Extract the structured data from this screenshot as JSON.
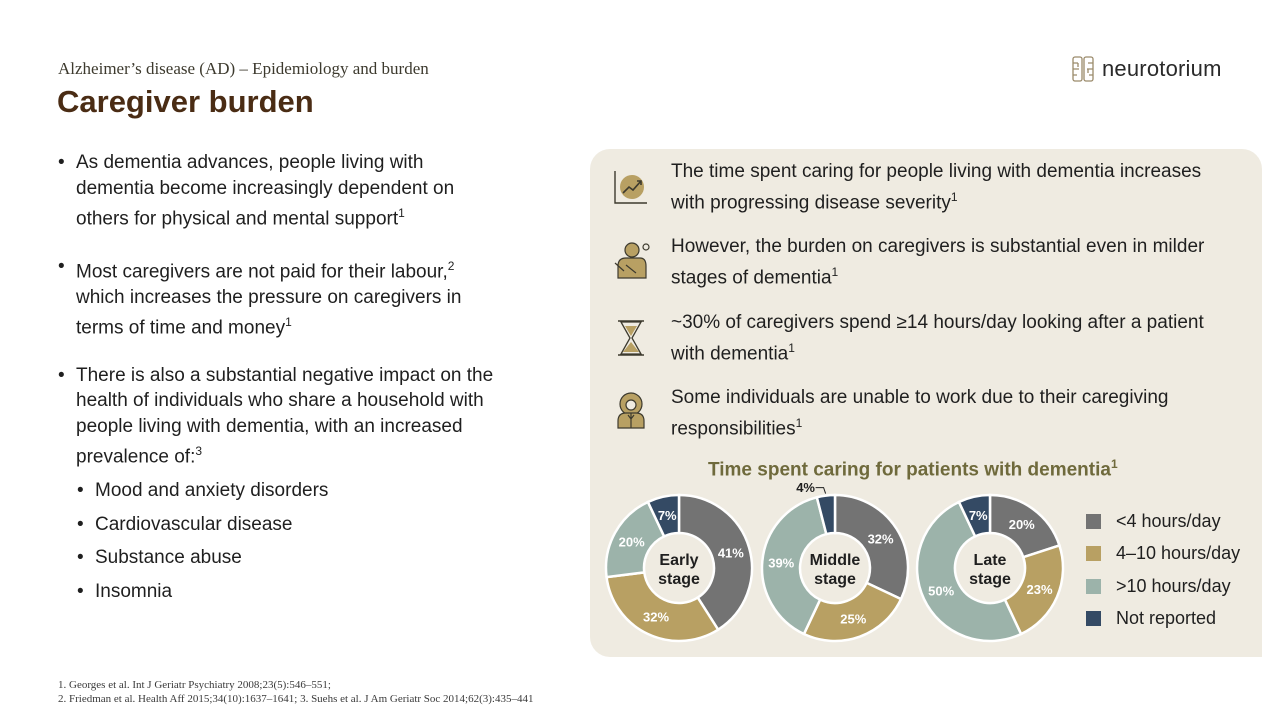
{
  "header": {
    "subtitle": "Alzheimer’s disease (AD) – Epidemiology and burden",
    "title": "Caregiver burden",
    "logo_text": "neurotorium"
  },
  "bullets": [
    {
      "text": "As dementia advances, people living with dementia become increasingly dependent on others for physical and mental support",
      "ref": "1"
    },
    {
      "text": "Most caregivers are not paid for their labour,",
      "ref": "2",
      "text2": " which increases the pressure on caregivers in terms of time and money",
      "ref2": "1"
    },
    {
      "text": "There is also a substantial negative impact on the health of individuals who share a household with people living with dementia, with an increased prevalence of:",
      "ref": "3"
    }
  ],
  "sub_bullets": [
    "Mood and anxiety disorders",
    "Cardiovascular disease",
    "Substance abuse",
    "Insomnia"
  ],
  "panel": {
    "statements": [
      {
        "text": "The time spent caring for people living with dementia increases with progressing disease severity",
        "ref": "1",
        "icon": "chart-trend-icon"
      },
      {
        "text": "However, the burden on caregivers is substantial even in milder stages of dementia",
        "ref": "1",
        "icon": "caregiver-burden-icon"
      },
      {
        "text": "~30% of caregivers spend ≥14 hours/day looking after a patient with dementia",
        "ref": "1",
        "icon": "hourglass-icon"
      },
      {
        "text": "Some individuals are unable to work due to their caregiving responsibilities",
        "ref": "1",
        "icon": "worker-icon"
      }
    ],
    "chart_title": "Time spent caring for patients with dementia",
    "chart_title_ref": "1"
  },
  "chart_data": {
    "type": "pie",
    "title": "Time spent caring for patients with dementia",
    "legend_position": "right",
    "categories": [
      "<4 hours/day",
      "4–10 hours/day",
      ">10 hours/day",
      "Not reported"
    ],
    "colors": [
      "#737373",
      "#b8a063",
      "#9cb3aa",
      "#344a64"
    ],
    "series": [
      {
        "name": "Early stage",
        "label_line1": "Early",
        "label_line2": "stage",
        "values": [
          41,
          32,
          20,
          7
        ]
      },
      {
        "name": "Middle stage",
        "label_line1": "Middle",
        "label_line2": "stage",
        "values": [
          32,
          25,
          39,
          4
        ]
      },
      {
        "name": "Late stage",
        "label_line1": "Late",
        "label_line2": "stage",
        "values": [
          20,
          23,
          50,
          7
        ]
      }
    ]
  },
  "references": [
    "1. Georges et al. Int J Geriatr Psychiatry 2008;23(5):546–551;",
    "2. Friedman et al. Health Aff 2015;34(10):1637–1641; 3. Suehs et al. J Am Geriatr Soc 2014;62(3):435–441"
  ]
}
